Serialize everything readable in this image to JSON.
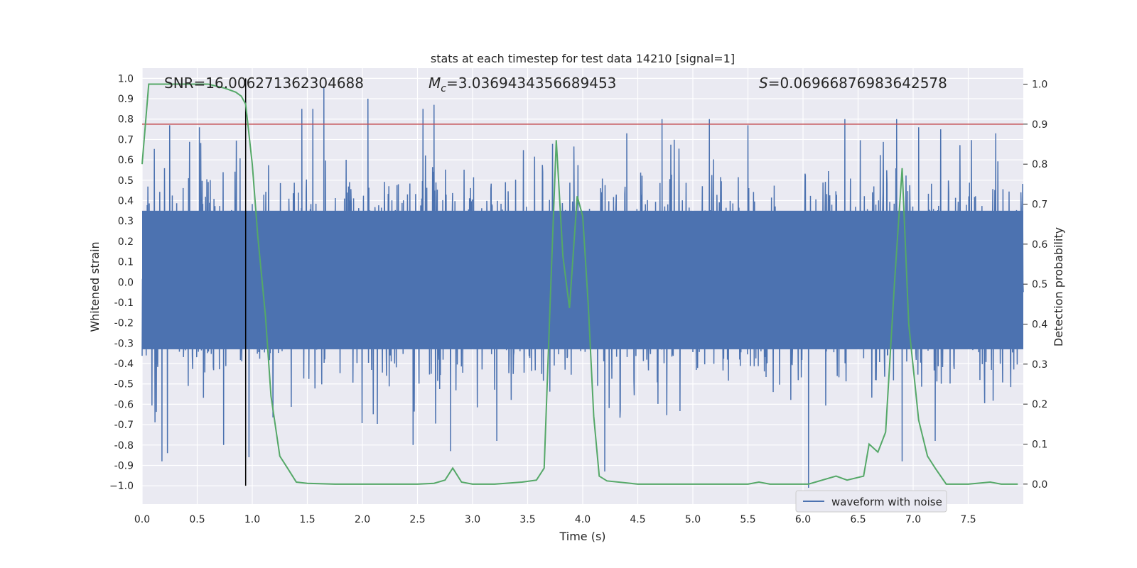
{
  "chart_data": {
    "type": "line",
    "title": "stats at each timestep for test data 14210 [signal=1]",
    "xlabel": "Time (s)",
    "ylabel_left": "Whitened strain",
    "ylabel_right": "Detection probability",
    "xlim": [
      0.0,
      8.0
    ],
    "ylim_left": [
      -1.09,
      1.05
    ],
    "ylim_right": [
      -0.05,
      1.04
    ],
    "x_ticks": [
      0.0,
      0.5,
      1.0,
      1.5,
      2.0,
      2.5,
      3.0,
      3.5,
      4.0,
      4.5,
      5.0,
      5.5,
      6.0,
      6.5,
      7.0,
      7.5
    ],
    "x_tick_labels": [
      "0.0",
      "0.5",
      "1.0",
      "1.5",
      "2.0",
      "2.5",
      "3.0",
      "3.5",
      "4.0",
      "4.5",
      "5.0",
      "5.5",
      "6.0",
      "6.5",
      "7.0",
      "7.5"
    ],
    "y_left_ticks": [
      1.0,
      0.9,
      0.8,
      0.7,
      0.6,
      0.5,
      0.4,
      0.3,
      0.2,
      0.1,
      0.0,
      -0.1,
      -0.2,
      -0.3,
      -0.4,
      -0.5,
      -0.6,
      -0.7,
      -0.8,
      -0.9,
      -1.0
    ],
    "y_left_tick_labels": [
      "1.0",
      "0.9",
      "0.8",
      "0.7",
      "0.6",
      "0.5",
      "0.4",
      "0.3",
      "0.2",
      "0.1",
      "0.0",
      "-0.1",
      "-0.2",
      "-0.3",
      "-0.4",
      "-0.5",
      "-0.6",
      "-0.7",
      "-0.8",
      "-0.9",
      "−1.0"
    ],
    "y_right_ticks": [
      1.0,
      0.9,
      0.8,
      0.7,
      0.6,
      0.5,
      0.4,
      0.3,
      0.2,
      0.1,
      0.0
    ],
    "y_right_tick_labels": [
      "1.0",
      "0.9",
      "0.8",
      "0.7",
      "0.6",
      "0.5",
      "0.4",
      "0.3",
      "0.2",
      "0.1",
      "0.0"
    ],
    "grid": true,
    "annotations": {
      "snr": "SNR=16.006271362304688",
      "mc_symbol": "M",
      "mc_subscript": "c",
      "mc_value": "=3.0369434356689453",
      "s_symbol": "S",
      "s_value": "=0.06966876983642578"
    },
    "threshold": {
      "value": 0.9,
      "axis": "right",
      "color": "#c44e52"
    },
    "marker": {
      "x": 0.94,
      "y_from": -1.0,
      "y_to": 1.0,
      "color": "#000000"
    },
    "legend": {
      "position": "lower-right",
      "entries": [
        "waveform with noise"
      ]
    },
    "series": [
      {
        "name": "waveform with noise",
        "axis": "left",
        "color": "#4c72b0",
        "style": "dense-noise",
        "x_range": [
          0.0,
          8.0
        ],
        "typical_band": [
          -0.4,
          0.45
        ],
        "peaks_high": [
          [
            0.25,
            0.77
          ],
          [
            0.52,
            0.76
          ],
          [
            1.45,
            0.85
          ],
          [
            1.55,
            0.85
          ],
          [
            1.65,
            0.96
          ],
          [
            2.05,
            0.9
          ],
          [
            2.55,
            0.85
          ],
          [
            2.65,
            0.87
          ],
          [
            4.4,
            0.73
          ],
          [
            4.72,
            0.8
          ],
          [
            5.15,
            0.8
          ],
          [
            5.5,
            0.77
          ],
          [
            6.38,
            0.8
          ],
          [
            6.85,
            0.8
          ],
          [
            7.05,
            0.76
          ],
          [
            7.25,
            0.75
          ],
          [
            7.75,
            0.73
          ]
        ],
        "peaks_low": [
          [
            0.18,
            -0.88
          ],
          [
            0.23,
            -0.84
          ],
          [
            0.74,
            -0.8
          ],
          [
            0.97,
            -0.86
          ],
          [
            2.46,
            -0.8
          ],
          [
            2.8,
            -0.83
          ],
          [
            3.22,
            -0.78
          ],
          [
            4.2,
            -0.93
          ],
          [
            6.05,
            -1.01
          ],
          [
            6.9,
            -0.88
          ],
          [
            7.2,
            -0.78
          ]
        ]
      },
      {
        "name": "",
        "axis": "right",
        "color": "#55a868",
        "style": "line",
        "x": [
          0.0,
          0.06,
          0.1,
          0.2,
          0.4,
          0.6,
          0.75,
          0.85,
          0.9,
          0.94,
          1.0,
          1.05,
          1.12,
          1.17,
          1.25,
          1.32,
          1.4,
          1.5,
          1.75,
          2.0,
          2.25,
          2.5,
          2.65,
          2.75,
          2.82,
          2.9,
          3.0,
          3.2,
          3.45,
          3.58,
          3.65,
          3.7,
          3.76,
          3.82,
          3.88,
          3.95,
          4.0,
          4.05,
          4.1,
          4.15,
          4.22,
          4.5,
          5.0,
          5.5,
          5.6,
          5.7,
          6.05,
          6.3,
          6.4,
          6.55,
          6.6,
          6.68,
          6.75,
          6.83,
          6.9,
          6.96,
          7.05,
          7.13,
          7.2,
          7.3,
          7.5,
          7.7,
          7.8,
          7.95
        ],
        "values": [
          0.8,
          1.0,
          1.0,
          1.0,
          1.0,
          1.0,
          0.99,
          0.98,
          0.97,
          0.95,
          0.8,
          0.62,
          0.42,
          0.22,
          0.07,
          0.04,
          0.005,
          0.002,
          0.0,
          0.0,
          0.0,
          0.0,
          0.002,
          0.01,
          0.04,
          0.005,
          0.0,
          0.0,
          0.005,
          0.01,
          0.04,
          0.42,
          0.86,
          0.57,
          0.44,
          0.72,
          0.67,
          0.45,
          0.17,
          0.02,
          0.008,
          0.0,
          0.0,
          0.0,
          0.005,
          0.0,
          0.0,
          0.02,
          0.01,
          0.02,
          0.1,
          0.08,
          0.13,
          0.5,
          0.79,
          0.4,
          0.16,
          0.07,
          0.04,
          0.0,
          0.0,
          0.005,
          0.0,
          0.0
        ]
      }
    ]
  }
}
